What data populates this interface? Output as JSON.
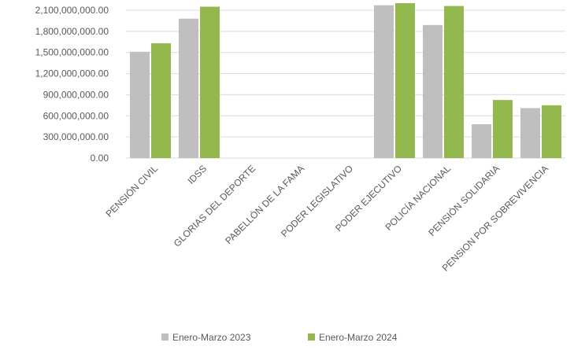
{
  "chart_data": {
    "type": "bar",
    "title": "",
    "xlabel": "",
    "ylabel": "",
    "ylim": [
      0,
      2100000000
    ],
    "yticks": [
      0,
      300000000,
      600000000,
      900000000,
      1200000000,
      1500000000,
      1800000000,
      2100000000
    ],
    "ytick_labels": [
      "0.00",
      "300,000,000.00",
      "600,000,000.00",
      "900,000,000.00",
      "1,200,000,000.00",
      "1,500,000,000.00",
      "1,800,000,000.00",
      "2,100,000,000.00"
    ],
    "grid": true,
    "legend_position": "bottom",
    "categories": [
      "PENSIÓN CIVIL",
      "IDSS",
      "GLORIAS DEL DEPORTE",
      "PABELLÓN DE LA FAMA",
      "PODER LEGISLATIVO",
      "PODER EJECUTIVO",
      "POLICÍA NACIONAL",
      "PENSIÓN SOLIDARIA",
      "PENSION POR SOBREVIVENCIA"
    ],
    "series": [
      {
        "name": "Enero-Marzo 2023",
        "color": "#BFBFBF",
        "values": [
          1510000000,
          1980000000,
          0,
          0,
          0,
          2170000000,
          1890000000,
          480000000,
          710000000
        ]
      },
      {
        "name": "Enero-Marzo 2024",
        "color": "#92B84E",
        "values": [
          1630000000,
          2150000000,
          0,
          0,
          0,
          2200000000,
          2160000000,
          825000000,
          750000000
        ]
      }
    ]
  }
}
